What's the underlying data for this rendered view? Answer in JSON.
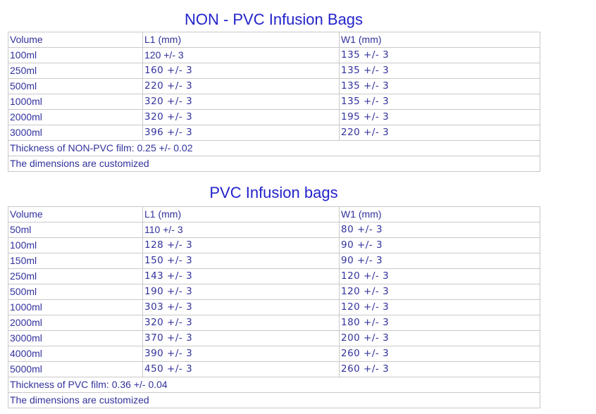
{
  "page": {
    "background": "#ffffff",
    "text_color": "#32329d",
    "title_color": "#2323cb",
    "border_color": "#c9c9c9"
  },
  "tables": [
    {
      "title": "NON - PVC Infusion Bags",
      "columns": [
        "Volume",
        "L1 (mm)",
        "W1 (mm)"
      ],
      "rows": [
        {
          "volume": "100ml",
          "l1": "120 +/- 3",
          "w1": "135 +/- 3"
        },
        {
          "volume": "250ml",
          "l1": "160 +/- 3",
          "w1": "135 +/- 3"
        },
        {
          "volume": "500ml",
          "l1": "220 +/- 3",
          "w1": "135 +/- 3"
        },
        {
          "volume": "1000ml",
          "l1": "320 +/- 3",
          "w1": "135 +/- 3"
        },
        {
          "volume": "2000ml",
          "l1": "320 +/- 3",
          "w1": "195 +/- 3"
        },
        {
          "volume": "3000ml",
          "l1": "396 +/- 3",
          "w1": "220 +/- 3"
        }
      ],
      "footers": [
        "Thickness of NON-PVC film: 0.25 +/- 0.02",
        "The dimensions are customized"
      ]
    },
    {
      "title": "PVC Infusion bags",
      "columns": [
        "Volume",
        "L1 (mm)",
        "W1 (mm)"
      ],
      "rows": [
        {
          "volume": "50ml",
          "l1": "110 +/- 3",
          "w1": "80 +/- 3"
        },
        {
          "volume": "100ml",
          "l1": "128 +/- 3",
          "w1": "90 +/- 3"
        },
        {
          "volume": "150ml",
          "l1": "150 +/- 3",
          "w1": "90 +/- 3"
        },
        {
          "volume": "250ml",
          "l1": "143 +/- 3",
          "w1": "120 +/- 3"
        },
        {
          "volume": "500ml",
          "l1": "190 +/- 3",
          "w1": "120 +/- 3"
        },
        {
          "volume": "1000ml",
          "l1": "303 +/- 3",
          "w1": "120 +/- 3"
        },
        {
          "volume": "2000ml",
          "l1": "320 +/- 3",
          "w1": "180 +/- 3"
        },
        {
          "volume": "3000ml",
          "l1": "370 +/- 3",
          "w1": "200 +/- 3"
        },
        {
          "volume": "4000ml",
          "l1": "390 +/- 3",
          "w1": "260 +/- 3"
        },
        {
          "volume": "5000ml",
          "l1": "450 +/- 3",
          "w1": "260 +/- 3"
        }
      ],
      "footers": [
        "Thickness of PVC film: 0.36 +/- 0.04",
        "The dimensions are customized"
      ]
    }
  ]
}
